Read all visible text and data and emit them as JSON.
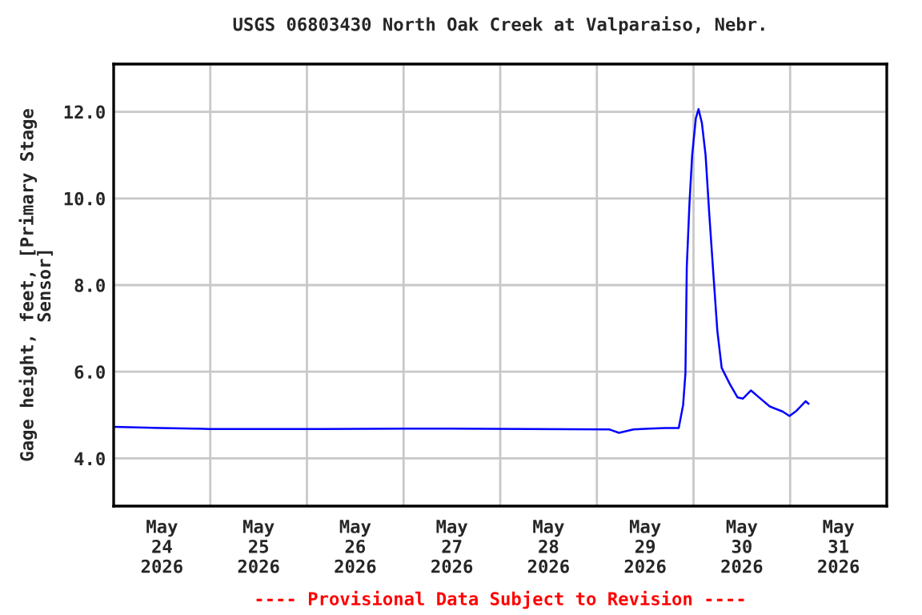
{
  "chart_data": {
    "type": "line",
    "title": "USGS 06803430 North Oak Creek at Valparaiso, Nebr.",
    "ylabel": "Gage height, feet, [Primary Stage\nSensor]",
    "annotations": [
      "---- Provisional Data Subject to Revision ----"
    ],
    "series": [
      {
        "color": "#0000ff",
        "x": [
          "2026-05-24T00:00",
          "2026-05-24T11:40",
          "2026-05-24T23:35",
          "2026-05-26T03:30",
          "2026-05-27T11:20",
          "2026-05-29T03:05",
          "2026-05-29T05:30",
          "2026-05-29T09:05",
          "2026-05-29T13:00",
          "2026-05-29T17:00",
          "2026-05-29T20:20",
          "2026-05-29T21:25",
          "2026-05-29T22:00",
          "2026-05-29T22:20",
          "2026-05-29T23:00",
          "2026-05-29T23:40",
          "2026-05-30T00:35",
          "2026-05-30T01:15",
          "2026-05-30T02:05",
          "2026-05-30T03:00",
          "2026-05-30T03:55",
          "2026-05-30T05:00",
          "2026-05-30T05:55",
          "2026-05-30T07:00",
          "2026-05-30T09:00",
          "2026-05-30T10:55",
          "2026-05-30T12:15",
          "2026-05-30T14:15",
          "2026-05-30T16:15",
          "2026-05-30T18:55",
          "2026-05-30T22:10",
          "2026-05-30T23:50",
          "2026-05-31T01:35",
          "2026-05-31T03:50",
          "2026-05-31T04:35"
        ],
        "values": [
          4.73,
          4.7,
          4.68,
          4.68,
          4.69,
          4.67,
          4.59,
          4.67,
          4.69,
          4.7,
          4.7,
          5.23,
          5.97,
          8.42,
          9.89,
          11.0,
          11.85,
          12.06,
          11.74,
          11.0,
          9.64,
          8.17,
          6.95,
          6.09,
          5.72,
          5.41,
          5.38,
          5.57,
          5.41,
          5.2,
          5.08,
          4.98,
          5.1,
          5.32,
          5.26
        ]
      }
    ],
    "xlim": [
      "2026-05-24T00:00",
      "2026-06-01T00:00"
    ],
    "xticks": [
      {
        "value": "2026-05-24T00:00",
        "label": null
      },
      {
        "value": "2026-05-24T12:00",
        "label": "May\n24\n2026"
      },
      {
        "value": "2026-05-25T00:00",
        "label": null
      },
      {
        "value": "2026-05-25T12:00",
        "label": "May\n25\n2026"
      },
      {
        "value": "2026-05-26T00:00",
        "label": null
      },
      {
        "value": "2026-05-26T12:00",
        "label": "May\n26\n2026"
      },
      {
        "value": "2026-05-27T00:00",
        "label": null
      },
      {
        "value": "2026-05-27T12:00",
        "label": "May\n27\n2026"
      },
      {
        "value": "2026-05-28T00:00",
        "label": null
      },
      {
        "value": "2026-05-28T12:00",
        "label": "May\n28\n2026"
      },
      {
        "value": "2026-05-29T00:00",
        "label": null
      },
      {
        "value": "2026-05-29T12:00",
        "label": "May\n29\n2026"
      },
      {
        "value": "2026-05-30T00:00",
        "label": null
      },
      {
        "value": "2026-05-30T12:00",
        "label": "May\n30\n2026"
      },
      {
        "value": "2026-05-31T00:00",
        "label": null
      },
      {
        "value": "2026-05-31T12:00",
        "label": "May\n31\n2026"
      },
      {
        "value": "2026-06-01T00:00",
        "label": null
      }
    ],
    "ylim": [
      2.9,
      13.1
    ],
    "yticks": [
      {
        "value": 4,
        "label": "4.0"
      },
      {
        "value": 6,
        "label": "6.0"
      },
      {
        "value": 8,
        "label": "8.0"
      },
      {
        "value": 10,
        "label": "10.0"
      },
      {
        "value": 12,
        "label": "12.0"
      }
    ],
    "grid": true,
    "legend": false,
    "marker": "none",
    "line_style": "solid"
  }
}
